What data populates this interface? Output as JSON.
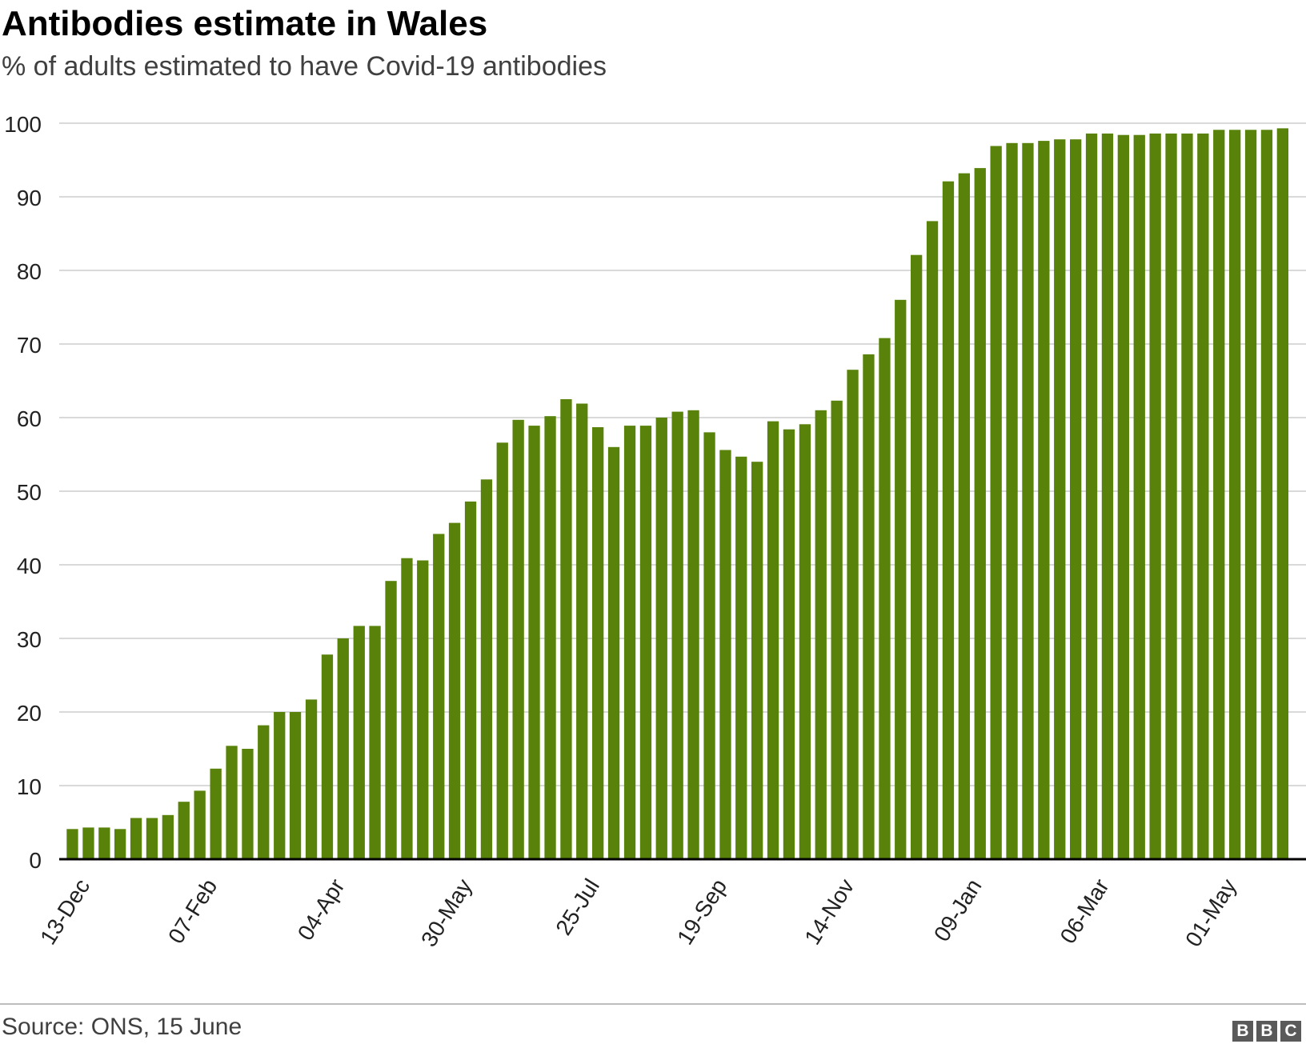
{
  "header": {
    "title": "Antibodies estimate in Wales",
    "subtitle": "% of adults estimated to have Covid-19 antibodies"
  },
  "footer": {
    "source": "Source: ONS, 15 June",
    "logo_letters": [
      "B",
      "B",
      "C"
    ]
  },
  "colors": {
    "bar": "#588209",
    "grid": "#d9d9d9",
    "axis": "#000000",
    "logo_bg": "#5a5a5a"
  },
  "chart_data": {
    "type": "bar",
    "title": "Antibodies estimate in Wales",
    "subtitle": "% of adults estimated to have Covid-19 antibodies",
    "ylim": [
      0,
      100
    ],
    "yticks": [
      0,
      10,
      20,
      30,
      40,
      50,
      60,
      70,
      80,
      90,
      100
    ],
    "grid": true,
    "period_days": 7,
    "x_tick_labels": [
      {
        "index": 0,
        "label": "13-Dec"
      },
      {
        "index": 8,
        "label": "07-Feb"
      },
      {
        "index": 16,
        "label": "04-Apr"
      },
      {
        "index": 24,
        "label": "30-May"
      },
      {
        "index": 32,
        "label": "25-Jul"
      },
      {
        "index": 40,
        "label": "19-Sep"
      },
      {
        "index": 48,
        "label": "14-Nov"
      },
      {
        "index": 56,
        "label": "09-Jan"
      },
      {
        "index": 64,
        "label": "06-Mar"
      },
      {
        "index": 72,
        "label": "01-May"
      }
    ],
    "values": [
      4.1,
      4.3,
      4.3,
      4.1,
      5.6,
      5.6,
      6.0,
      7.8,
      9.3,
      12.3,
      15.4,
      15.0,
      18.2,
      20.0,
      20.0,
      21.7,
      27.8,
      30.0,
      31.7,
      31.7,
      37.8,
      40.9,
      40.6,
      44.2,
      45.7,
      48.6,
      51.6,
      56.6,
      59.7,
      58.9,
      60.2,
      62.5,
      61.9,
      58.7,
      56.0,
      58.9,
      58.9,
      60.0,
      60.8,
      61.0,
      58.0,
      55.6,
      54.7,
      54.0,
      59.5,
      58.4,
      59.1,
      61.0,
      62.3,
      66.5,
      68.6,
      70.8,
      76.0,
      82.1,
      86.7,
      92.1,
      93.2,
      93.9,
      96.9,
      97.3,
      97.3,
      97.6,
      97.8,
      97.8,
      98.6,
      98.6,
      98.4,
      98.4,
      98.6,
      98.6,
      98.6,
      98.6,
      99.1,
      99.1,
      99.1,
      99.1,
      99.3
    ]
  }
}
